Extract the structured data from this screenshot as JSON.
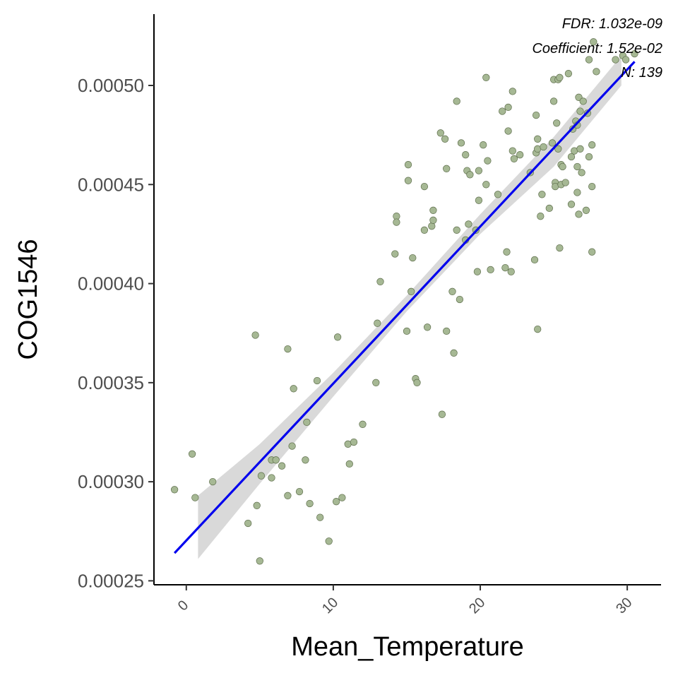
{
  "chart_data": {
    "type": "scatter",
    "xlabel": "Mean_Temperature",
    "ylabel": "COG1546",
    "xlim": [
      -2.2,
      32.3
    ],
    "ylim": [
      0.000248,
      0.000536
    ],
    "x_ticks": [
      0,
      10,
      20,
      30
    ],
    "x_tick_labels": [
      "0",
      "10",
      "20",
      "30"
    ],
    "y_ticks": [
      0.00025,
      0.0003,
      0.00035,
      0.0004,
      0.00045,
      0.0005
    ],
    "y_tick_labels": [
      "0.00025",
      "0.00030",
      "0.00035",
      "0.00040",
      "0.00045",
      "0.00050"
    ],
    "grid": false,
    "point_color": "#a6b894",
    "point_stroke": "#5e6e4c",
    "line_color": "#0000ee",
    "band_color": "#d9d9d9",
    "annotations": [
      "FDR: 1.032e-09",
      "Coefficient: 1.52e-02",
      "N: 139"
    ],
    "fit": {
      "x_start": -0.8,
      "y_start": 0.000264,
      "x_end": 30.5,
      "y_end": 0.000512
    },
    "band": {
      "x": [
        0.8,
        5,
        10,
        15,
        20,
        25,
        29.6
      ],
      "lower": [
        0.000261,
        0.000299,
        0.000343,
        0.000386,
        0.000425,
        0.000459,
        0.0005
      ],
      "upper": [
        0.000293,
        0.000319,
        0.000355,
        0.000394,
        0.000435,
        0.000474,
        0.000515
      ]
    },
    "points": [
      [
        -0.8,
        0.000296
      ],
      [
        0.4,
        0.000314
      ],
      [
        0.6,
        0.000292
      ],
      [
        1.8,
        0.0003
      ],
      [
        4.2,
        0.000279
      ],
      [
        4.7,
        0.000374
      ],
      [
        4.8,
        0.000288
      ],
      [
        5.0,
        0.00026
      ],
      [
        5.1,
        0.000303
      ],
      [
        5.8,
        0.000311
      ],
      [
        5.8,
        0.000302
      ],
      [
        6.1,
        0.000311
      ],
      [
        6.5,
        0.000308
      ],
      [
        6.9,
        0.000367
      ],
      [
        6.9,
        0.000293
      ],
      [
        7.2,
        0.000318
      ],
      [
        7.3,
        0.000347
      ],
      [
        7.7,
        0.000295
      ],
      [
        8.1,
        0.000311
      ],
      [
        8.2,
        0.00033
      ],
      [
        8.4,
        0.000289
      ],
      [
        8.9,
        0.000351
      ],
      [
        9.1,
        0.000282
      ],
      [
        9.7,
        0.00027
      ],
      [
        10.2,
        0.00029
      ],
      [
        10.3,
        0.000373
      ],
      [
        10.6,
        0.000292
      ],
      [
        11.0,
        0.000319
      ],
      [
        11.1,
        0.000309
      ],
      [
        11.4,
        0.00032
      ],
      [
        12.0,
        0.000329
      ],
      [
        12.9,
        0.00035
      ],
      [
        13.0,
        0.00038
      ],
      [
        13.2,
        0.000401
      ],
      [
        14.2,
        0.000415
      ],
      [
        14.3,
        0.000434
      ],
      [
        14.3,
        0.000431
      ],
      [
        15.0,
        0.000376
      ],
      [
        15.1,
        0.000452
      ],
      [
        15.1,
        0.00046
      ],
      [
        15.3,
        0.000396
      ],
      [
        15.4,
        0.000413
      ],
      [
        15.6,
        0.000352
      ],
      [
        15.7,
        0.00035
      ],
      [
        16.2,
        0.000449
      ],
      [
        16.2,
        0.000427
      ],
      [
        16.4,
        0.000378
      ],
      [
        16.7,
        0.000429
      ],
      [
        16.8,
        0.000437
      ],
      [
        16.8,
        0.000432
      ],
      [
        17.3,
        0.000476
      ],
      [
        17.4,
        0.000334
      ],
      [
        17.6,
        0.000473
      ],
      [
        17.7,
        0.000458
      ],
      [
        17.7,
        0.000376
      ],
      [
        18.1,
        0.000396
      ],
      [
        18.2,
        0.000365
      ],
      [
        18.4,
        0.000427
      ],
      [
        18.4,
        0.000492
      ],
      [
        18.6,
        0.000392
      ],
      [
        18.7,
        0.000471
      ],
      [
        19.0,
        0.000465
      ],
      [
        19.0,
        0.000422
      ],
      [
        19.1,
        0.000457
      ],
      [
        19.2,
        0.00043
      ],
      [
        19.3,
        0.000455
      ],
      [
        19.7,
        0.000427
      ],
      [
        19.8,
        0.000406
      ],
      [
        19.9,
        0.000442
      ],
      [
        19.9,
        0.000457
      ],
      [
        20.2,
        0.00047
      ],
      [
        20.4,
        0.00045
      ],
      [
        20.4,
        0.000504
      ],
      [
        20.5,
        0.000462
      ],
      [
        20.7,
        0.000407
      ],
      [
        21.2,
        0.000445
      ],
      [
        21.5,
        0.000487
      ],
      [
        21.7,
        0.000408
      ],
      [
        21.8,
        0.000416
      ],
      [
        21.9,
        0.000489
      ],
      [
        21.9,
        0.000477
      ],
      [
        22.1,
        0.000406
      ],
      [
        22.2,
        0.000497
      ],
      [
        22.2,
        0.000467
      ],
      [
        22.3,
        0.000463
      ],
      [
        22.7,
        0.000465
      ],
      [
        23.4,
        0.000456
      ],
      [
        23.7,
        0.000412
      ],
      [
        23.8,
        0.000466
      ],
      [
        23.9,
        0.000377
      ],
      [
        23.8,
        0.000485
      ],
      [
        23.9,
        0.000473
      ],
      [
        23.9,
        0.000468
      ],
      [
        24.1,
        0.000434
      ],
      [
        24.2,
        0.000445
      ],
      [
        24.3,
        0.000469
      ],
      [
        24.7,
        0.000438
      ],
      [
        24.9,
        0.000471
      ],
      [
        25.0,
        0.000503
      ],
      [
        25.0,
        0.000492
      ],
      [
        25.1,
        0.000451
      ],
      [
        25.1,
        0.000449
      ],
      [
        25.2,
        0.000481
      ],
      [
        25.3,
        0.000468
      ],
      [
        25.3,
        0.000503
      ],
      [
        25.4,
        0.000418
      ],
      [
        25.4,
        0.000504
      ],
      [
        25.5,
        0.00045
      ],
      [
        25.5,
        0.00046
      ],
      [
        25.6,
        0.000459
      ],
      [
        25.8,
        0.000451
      ],
      [
        26.0,
        0.000506
      ],
      [
        26.2,
        0.000464
      ],
      [
        26.2,
        0.00044
      ],
      [
        26.3,
        0.000478
      ],
      [
        26.4,
        0.000467
      ],
      [
        26.5,
        0.000482
      ],
      [
        26.6,
        0.000459
      ],
      [
        26.6,
        0.000446
      ],
      [
        26.6,
        0.00048
      ],
      [
        26.7,
        0.000435
      ],
      [
        26.7,
        0.000494
      ],
      [
        26.8,
        0.000468
      ],
      [
        26.8,
        0.000487
      ],
      [
        26.9,
        0.000456
      ],
      [
        27.0,
        0.000492
      ],
      [
        27.2,
        0.000437
      ],
      [
        27.3,
        0.000486
      ],
      [
        27.4,
        0.000464
      ],
      [
        27.4,
        0.000513
      ],
      [
        27.6,
        0.000449
      ],
      [
        27.6,
        0.00047
      ],
      [
        27.6,
        0.000416
      ],
      [
        27.7,
        0.000522
      ],
      [
        27.9,
        0.000507
      ],
      [
        29.2,
        0.000513
      ],
      [
        29.7,
        0.000515
      ],
      [
        29.9,
        0.000513
      ],
      [
        30.5,
        0.000516
      ]
    ]
  }
}
